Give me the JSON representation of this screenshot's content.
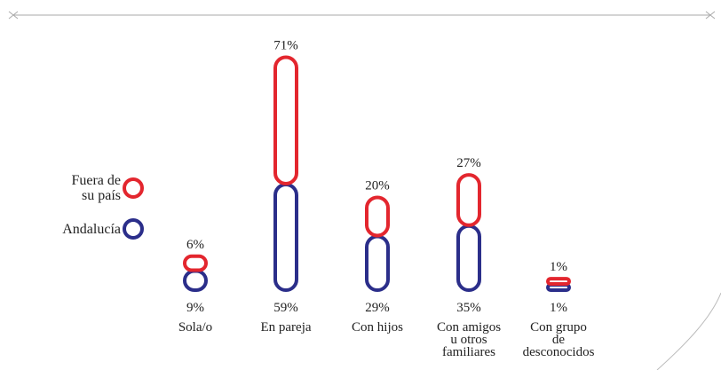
{
  "chart_data": {
    "type": "pill",
    "categories": [
      "Sola/o",
      "En pareja",
      "Con hijos",
      "Con amigos\nu otros\nfamiliares",
      "Con grupo\nde\ndesconocidos"
    ],
    "series": [
      {
        "name": "Fuera de\nsu país",
        "color": "#e3262e",
        "values": [
          6,
          71,
          20,
          27,
          1
        ],
        "value_labels": [
          "6%",
          "71%",
          "20%",
          "27%",
          "1%"
        ]
      },
      {
        "name": "Andalucía",
        "color": "#2b2e8a",
        "values": [
          9,
          59,
          29,
          35,
          1
        ],
        "value_labels": [
          "9%",
          "59%",
          "29%",
          "35%",
          "1%"
        ]
      }
    ]
  }
}
